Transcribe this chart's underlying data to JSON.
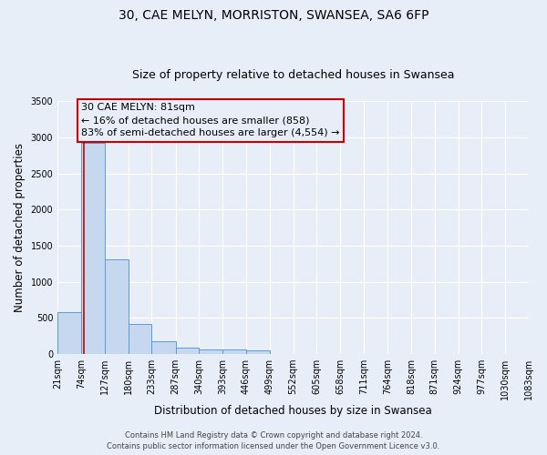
{
  "title": "30, CAE MELYN, MORRISTON, SWANSEA, SA6 6FP",
  "subtitle": "Size of property relative to detached houses in Swansea",
  "xlabel": "Distribution of detached houses by size in Swansea",
  "ylabel": "Number of detached properties",
  "bin_edges": [
    21,
    74,
    127,
    180,
    233,
    287,
    340,
    393,
    446,
    499,
    552,
    605,
    658,
    711,
    764,
    818,
    871,
    924,
    977,
    1030,
    1083
  ],
  "bar_heights": [
    580,
    2920,
    1310,
    415,
    175,
    80,
    60,
    55,
    50,
    0,
    0,
    0,
    0,
    0,
    0,
    0,
    0,
    0,
    0,
    0
  ],
  "bar_color": "#c5d8f0",
  "bar_edge_color": "#5b9bd5",
  "background_color": "#e8eef7",
  "grid_color": "#ffffff",
  "vline_x": 81,
  "vline_color": "#cc0000",
  "annotation_line1": "30 CAE MELYN: 81sqm",
  "annotation_line2": "← 16% of detached houses are smaller (858)",
  "annotation_line3": "83% of semi-detached houses are larger (4,554) →",
  "annotation_box_edge": "#cc0000",
  "ylim": [
    0,
    3500
  ],
  "yticks": [
    0,
    500,
    1000,
    1500,
    2000,
    2500,
    3000,
    3500
  ],
  "footer_line1": "Contains HM Land Registry data © Crown copyright and database right 2024.",
  "footer_line2": "Contains public sector information licensed under the Open Government Licence v3.0.",
  "title_fontsize": 10,
  "subtitle_fontsize": 9,
  "axis_label_fontsize": 8.5,
  "tick_fontsize": 7,
  "annotation_fontsize": 8,
  "footer_fontsize": 6
}
